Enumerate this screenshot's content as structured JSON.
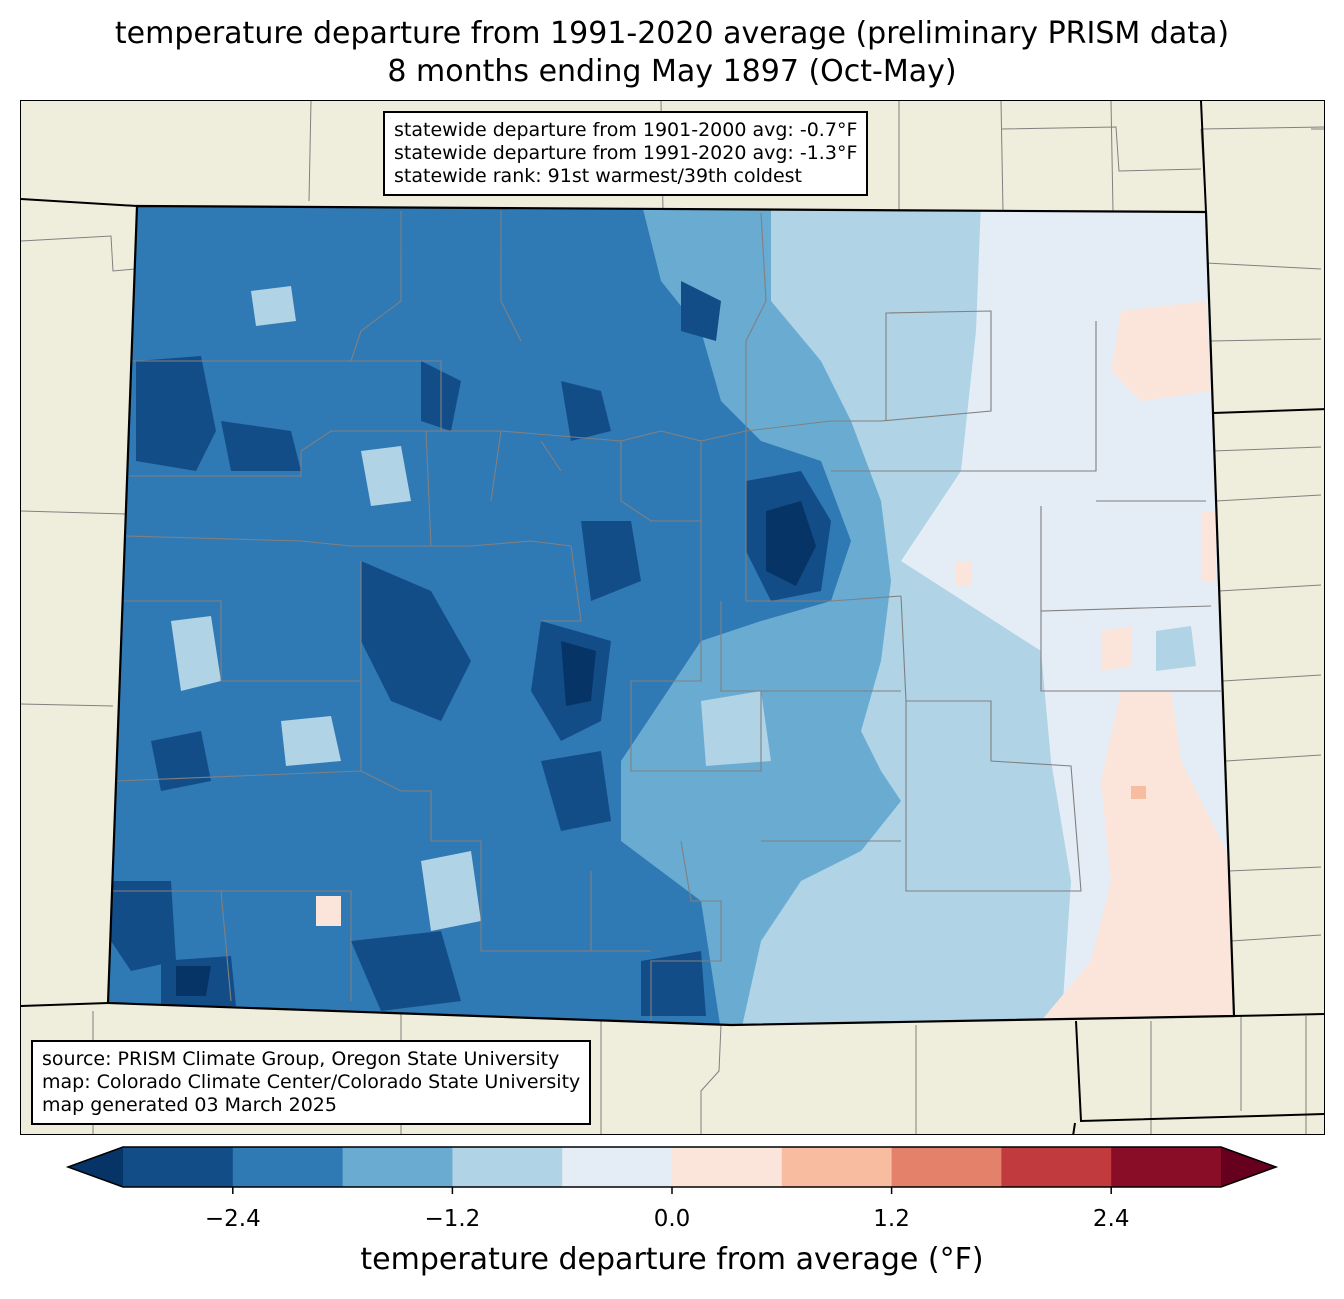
{
  "title": {
    "line1": "temperature departure from 1991-2020 average (preliminary PRISM data)",
    "line2": "8 months ending May 1897 (Oct-May)"
  },
  "stats": {
    "line1": "statewide departure from 1901-2000 avg: -0.7°F",
    "line2": "statewide departure from 1991-2020 avg: -1.3°F",
    "line3": "statewide rank: 91st warmest/39th coldest"
  },
  "source": {
    "line1": "source: PRISM Climate Group, Oregon State University",
    "line2": "map: Colorado Climate Center/Colorado State University",
    "line3": "map generated 03 March 2025"
  },
  "colorbar": {
    "label": "temperature departure from average (°F)",
    "ticks": [
      "−2.4",
      "−1.2",
      "0.0",
      "1.2",
      "2.4"
    ],
    "bins": [
      {
        "min": -3.0,
        "max": -2.4,
        "color": "#134d88"
      },
      {
        "min": -2.4,
        "max": -1.8,
        "color": "#2f79b5"
      },
      {
        "min": -1.8,
        "max": -1.2,
        "color": "#6aabd2"
      },
      {
        "min": -1.2,
        "max": -0.6,
        "color": "#b0d3e6"
      },
      {
        "min": -0.6,
        "max": 0.0,
        "color": "#e4edf5"
      },
      {
        "min": 0.0,
        "max": 0.6,
        "color": "#fbe5da"
      },
      {
        "min": 0.6,
        "max": 1.2,
        "color": "#f8bca0"
      },
      {
        "min": 1.2,
        "max": 1.8,
        "color": "#e3816a"
      },
      {
        "min": 1.8,
        "max": 2.4,
        "color": "#c13a3e"
      },
      {
        "min": 2.4,
        "max": 3.0,
        "color": "#890d26"
      }
    ],
    "under_color": "#073466",
    "over_color": "#67001f"
  },
  "colors": {
    "land_background": "#efeedc",
    "state_border": "#000000",
    "county_border": "#808080"
  }
}
